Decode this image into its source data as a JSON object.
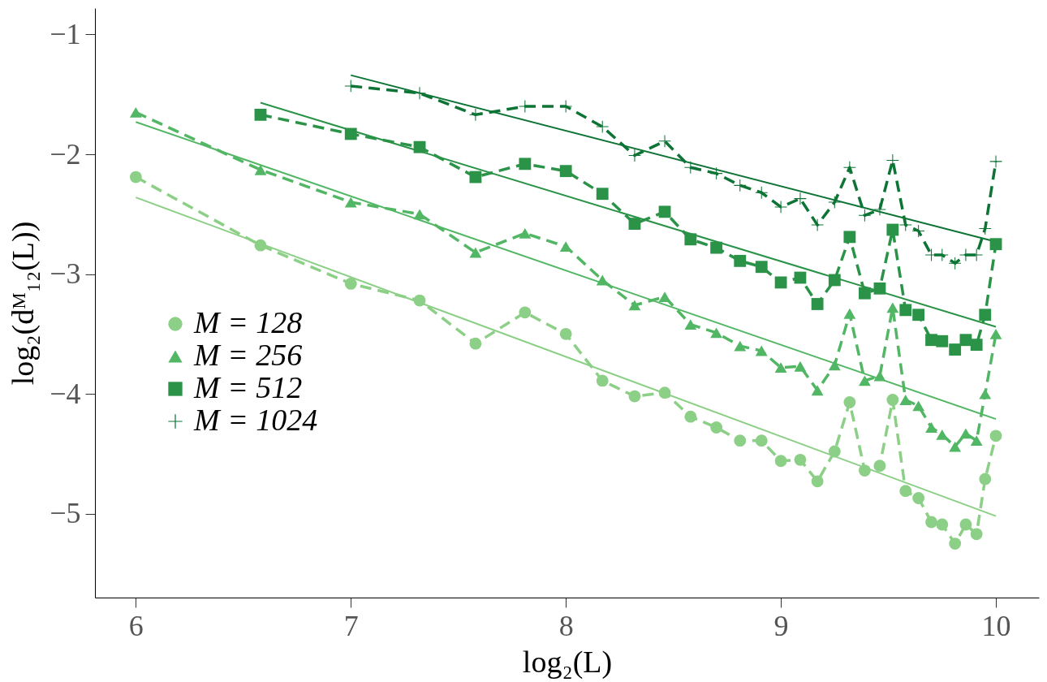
{
  "chart_data": {
    "type": "line",
    "xlabel": "log₂(L)",
    "ylabel": "log₂(dᴹ₁₂(L))",
    "xlim": [
      5.81,
      10.2
    ],
    "ylim": [
      -5.7,
      -0.78
    ],
    "xticks": [
      {
        "value": 6,
        "label": "6"
      },
      {
        "value": 7,
        "label": "7"
      },
      {
        "value": 8,
        "label": "8"
      },
      {
        "value": 9,
        "label": "9"
      },
      {
        "value": 10,
        "label": "10"
      }
    ],
    "yticks": [
      {
        "value": -1,
        "label": "−1"
      },
      {
        "value": -2,
        "label": "−2"
      },
      {
        "value": -3,
        "label": "−3"
      },
      {
        "value": -4,
        "label": "−4"
      },
      {
        "value": -5,
        "label": "−5"
      }
    ],
    "grid": false,
    "legend": "bottom left",
    "series": [
      {
        "name": "M = 128",
        "color": "#8ccf86",
        "marker": "circle",
        "line_style": "dashed",
        "x": [
          6,
          6.58,
          7,
          7.32,
          7.58,
          7.81,
          8,
          8.17,
          8.32,
          8.46,
          8.58,
          8.7,
          8.81,
          8.91,
          9,
          9.09,
          9.17,
          9.25,
          9.32,
          9.39,
          9.46,
          9.52,
          9.58,
          9.64,
          9.7,
          9.75,
          9.81,
          9.86,
          9.91,
          9.95,
          10
        ],
        "values": [
          -2.19,
          -2.76,
          -3.08,
          -3.22,
          -3.58,
          -3.32,
          -3.5,
          -3.89,
          -4.02,
          -3.99,
          -4.19,
          -4.28,
          -4.39,
          -4.39,
          -4.56,
          -4.55,
          -4.73,
          -4.48,
          -4.07,
          -4.64,
          -4.6,
          -4.05,
          -4.81,
          -4.87,
          -5.07,
          -5.09,
          -5.25,
          -5.09,
          -5.17,
          -4.71,
          -4.35
        ]
      },
      {
        "name": "M = 256",
        "color": "#52b765",
        "marker": "triangle",
        "line_style": "dashed",
        "x": [
          6,
          6.58,
          7,
          7.32,
          7.58,
          7.81,
          8,
          8.17,
          8.32,
          8.46,
          8.58,
          8.7,
          8.81,
          8.91,
          9,
          9.09,
          9.17,
          9.25,
          9.32,
          9.39,
          9.46,
          9.52,
          9.58,
          9.64,
          9.7,
          9.75,
          9.81,
          9.86,
          9.91,
          9.95,
          10
        ],
        "values": [
          -1.65,
          -2.13,
          -2.4,
          -2.5,
          -2.82,
          -2.66,
          -2.77,
          -3.05,
          -3.26,
          -3.19,
          -3.42,
          -3.49,
          -3.6,
          -3.64,
          -3.78,
          -3.77,
          -3.97,
          -3.76,
          -3.33,
          -3.89,
          -3.85,
          -3.28,
          -4.05,
          -4.1,
          -4.28,
          -4.34,
          -4.44,
          -4.33,
          -4.39,
          -4.0,
          -3.5
        ]
      },
      {
        "name": "M = 512",
        "color": "#2b9348",
        "marker": "square",
        "line_style": "dashed",
        "x": [
          6.58,
          7,
          7.32,
          7.58,
          7.81,
          8,
          8.17,
          8.32,
          8.46,
          8.58,
          8.7,
          8.81,
          8.91,
          9,
          9.09,
          9.17,
          9.25,
          9.32,
          9.39,
          9.46,
          9.52,
          9.58,
          9.64,
          9.7,
          9.75,
          9.81,
          9.86,
          9.91,
          9.95,
          10
        ],
        "values": [
          -1.67,
          -1.83,
          -1.94,
          -2.19,
          -2.08,
          -2.14,
          -2.33,
          -2.58,
          -2.48,
          -2.71,
          -2.78,
          -2.89,
          -2.94,
          -3.07,
          -3.03,
          -3.25,
          -3.05,
          -2.69,
          -3.16,
          -3.12,
          -2.63,
          -3.3,
          -3.34,
          -3.55,
          -3.56,
          -3.63,
          -3.55,
          -3.59,
          -3.34,
          -2.75
        ]
      },
      {
        "name": "M = 1024",
        "color": "#0d7435",
        "marker": "cross",
        "line_style": "dashed",
        "x": [
          7,
          7.32,
          7.58,
          7.81,
          8,
          8.17,
          8.32,
          8.46,
          8.58,
          8.7,
          8.81,
          8.91,
          9,
          9.09,
          9.17,
          9.25,
          9.32,
          9.39,
          9.46,
          9.52,
          9.58,
          9.64,
          9.7,
          9.75,
          9.81,
          9.86,
          9.91,
          9.95,
          10
        ],
        "values": [
          -1.43,
          -1.49,
          -1.67,
          -1.6,
          -1.6,
          -1.77,
          -2.01,
          -1.89,
          -2.11,
          -2.16,
          -2.26,
          -2.32,
          -2.44,
          -2.37,
          -2.59,
          -2.4,
          -2.11,
          -2.51,
          -2.46,
          -2.05,
          -2.59,
          -2.64,
          -2.84,
          -2.84,
          -2.91,
          -2.84,
          -2.84,
          -2.62,
          -2.06
        ]
      },
      {
        "color": "#8ccf86",
        "marker": "none",
        "line_style": "solid",
        "x": [
          6,
          10
        ],
        "values": [
          -2.36,
          -5.02
        ]
      },
      {
        "color": "#52b765",
        "marker": "none",
        "line_style": "solid",
        "x": [
          6,
          10
        ],
        "values": [
          -1.73,
          -4.21
        ]
      },
      {
        "color": "#2b9348",
        "marker": "none",
        "line_style": "solid",
        "x": [
          6.58,
          10
        ],
        "values": [
          -1.57,
          -3.44
        ]
      },
      {
        "color": "#0d7435",
        "marker": "none",
        "line_style": "solid",
        "x": [
          7,
          10
        ],
        "values": [
          -1.34,
          -2.73
        ]
      }
    ]
  }
}
